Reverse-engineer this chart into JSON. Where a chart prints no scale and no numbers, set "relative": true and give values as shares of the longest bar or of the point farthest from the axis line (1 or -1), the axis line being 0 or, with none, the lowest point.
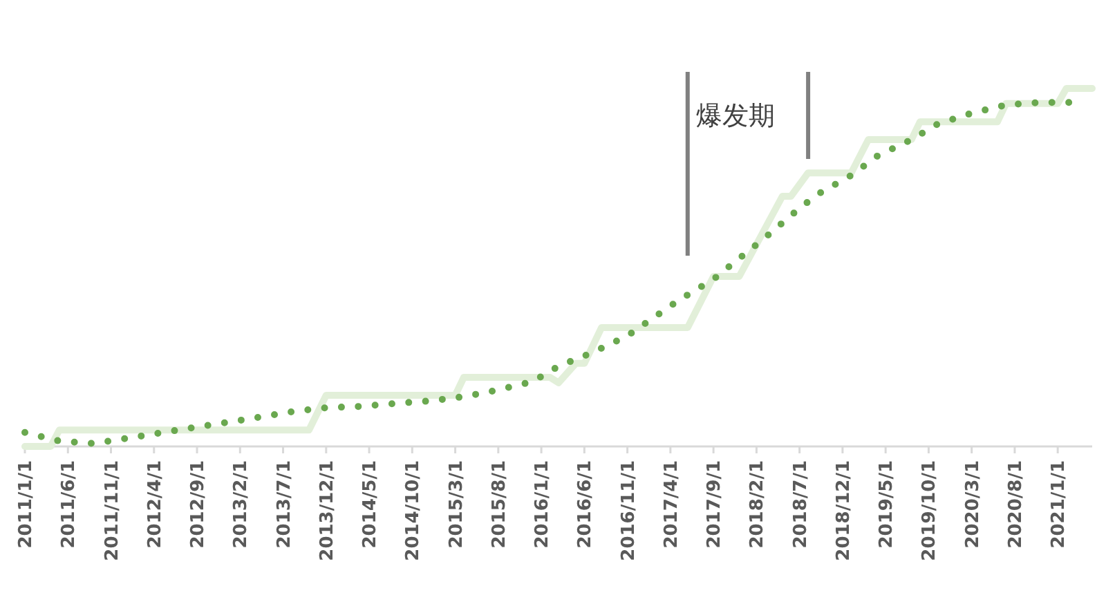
{
  "chart_data": {
    "type": "line",
    "relative": true,
    "xlim": [
      "2011-01",
      "2021-05"
    ],
    "xticks": [
      {
        "value": "2011-01",
        "label": "2011/1/1"
      },
      {
        "value": "2011-06",
        "label": "2011/6/1"
      },
      {
        "value": "2011-11",
        "label": "2011/11/1"
      },
      {
        "value": "2012-04",
        "label": "2012/4/1"
      },
      {
        "value": "2012-09",
        "label": "2012/9/1"
      },
      {
        "value": "2013-02",
        "label": "2013/2/1"
      },
      {
        "value": "2013-07",
        "label": "2013/7/1"
      },
      {
        "value": "2013-12",
        "label": "2013/12/1"
      },
      {
        "value": "2014-05",
        "label": "2014/5/1"
      },
      {
        "value": "2014-10",
        "label": "2014/10/1"
      },
      {
        "value": "2015-03",
        "label": "2015/3/1"
      },
      {
        "value": "2015-08",
        "label": "2015/8/1"
      },
      {
        "value": "2016-01",
        "label": "2016/1/1"
      },
      {
        "value": "2016-06",
        "label": "2016/6/1"
      },
      {
        "value": "2016-11",
        "label": "2016/11/1"
      },
      {
        "value": "2017-04",
        "label": "2017/4/1"
      },
      {
        "value": "2017-09",
        "label": "2017/9/1"
      },
      {
        "value": "2018-02",
        "label": "2018/2/1"
      },
      {
        "value": "2018-07",
        "label": "2018/7/1"
      },
      {
        "value": "2018-12",
        "label": "2018/12/1"
      },
      {
        "value": "2019-05",
        "label": "2019/5/1"
      },
      {
        "value": "2019-10",
        "label": "2019/10/1"
      },
      {
        "value": "2020-03",
        "label": "2020/3/1"
      },
      {
        "value": "2020-08",
        "label": "2020/8/1"
      },
      {
        "value": "2021-01",
        "label": "2021/1/1"
      }
    ],
    "series": [
      {
        "color": "#e2efd9",
        "line_style": "solid",
        "x": [
          "2011-01",
          "2011-04",
          "2011-05",
          "2013-10",
          "2013-12",
          "2015-03",
          "2015-04",
          "2016-02",
          "2016-03",
          "2016-05",
          "2016-06",
          "2016-08",
          "2017-06",
          "2017-09",
          "2017-12",
          "2018-05",
          "2018-06",
          "2018-08",
          "2019-01",
          "2019-03",
          "2019-08",
          "2019-09",
          "2020-06",
          "2020-07",
          "2021-01",
          "2021-02",
          "2021-05"
        ],
        "values": [
          0,
          0,
          0.046,
          0.046,
          0.143,
          0.143,
          0.193,
          0.193,
          0.178,
          0.232,
          0.232,
          0.332,
          0.332,
          0.475,
          0.475,
          0.699,
          0.699,
          0.764,
          0.764,
          0.857,
          0.857,
          0.907,
          0.907,
          0.958,
          0.958,
          1,
          1
        ]
      },
      {
        "color": "#6aa84f",
        "line_style": "dotted",
        "x": [
          "2011-01",
          "2011-05",
          "2011-09",
          "2012-01",
          "2012-05",
          "2012-09",
          "2013-01",
          "2013-05",
          "2013-08",
          "2013-12",
          "2014-04",
          "2014-08",
          "2014-12",
          "2015-04",
          "2015-08",
          "2015-12",
          "2016-03",
          "2016-07",
          "2016-11",
          "2017-02",
          "2017-05",
          "2017-09",
          "2017-12",
          "2018-03",
          "2018-06",
          "2018-09",
          "2019-01",
          "2019-04",
          "2019-08",
          "2019-11",
          "2020-03",
          "2020-07",
          "2020-11",
          "2021-03"
        ],
        "values": [
          0.039,
          0.015,
          0.008,
          0.023,
          0.039,
          0.054,
          0.069,
          0.085,
          0.097,
          0.108,
          0.112,
          0.12,
          0.127,
          0.139,
          0.158,
          0.181,
          0.224,
          0.263,
          0.309,
          0.359,
          0.409,
          0.467,
          0.525,
          0.583,
          0.645,
          0.703,
          0.757,
          0.811,
          0.857,
          0.9,
          0.931,
          0.954,
          0.961,
          0.961
        ]
      }
    ],
    "ref_lines": [
      {
        "axis": "x",
        "value": "2017-06",
        "label": "爆发期",
        "color": "#808080"
      },
      {
        "axis": "x",
        "value": "2018-08",
        "color": "#808080"
      }
    ]
  }
}
